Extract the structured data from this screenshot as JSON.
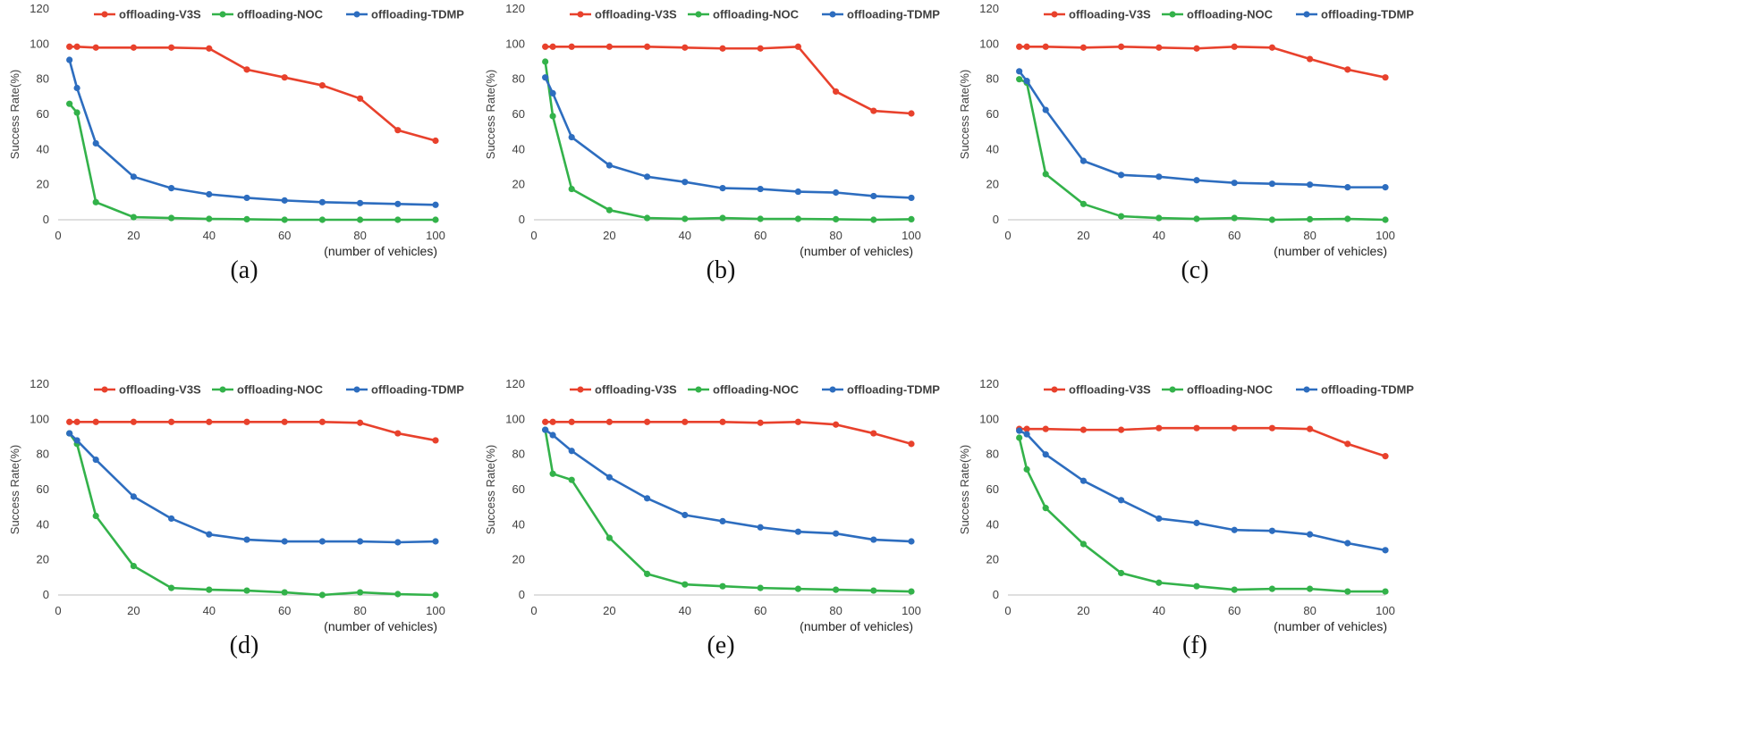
{
  "chart_data": [
    {
      "panel_label": "(a)",
      "type": "line",
      "xlabel": "(number of vehicles)",
      "ylabel": "Success Rate(%)",
      "xlim": [
        0,
        100
      ],
      "ylim": [
        0,
        120
      ],
      "x_ticks": [
        "0",
        "20",
        "40",
        "60",
        "80",
        "100"
      ],
      "y_ticks": [
        "0",
        "20",
        "40",
        "60",
        "80",
        "100",
        "120"
      ],
      "x": [
        3,
        5,
        10,
        20,
        30,
        40,
        50,
        60,
        70,
        80,
        90,
        100
      ],
      "series": [
        {
          "name": "offloading-V3S",
          "color": "#e8412c",
          "values": [
            98.5,
            98.5,
            98,
            98,
            98,
            97.5,
            85.5,
            81,
            76.5,
            69,
            51,
            45
          ]
        },
        {
          "name": "offloading-NOC",
          "color": "#33b24a",
          "values": [
            66,
            61,
            10,
            1.5,
            1,
            0.5,
            0.3,
            0,
            0,
            0,
            0,
            0
          ]
        },
        {
          "name": "offloading-TDMP",
          "color": "#2d6dbf",
          "values": [
            91,
            75,
            43.5,
            24.5,
            18,
            14.5,
            12.5,
            11,
            10,
            9.5,
            9,
            8.5
          ]
        }
      ]
    },
    {
      "panel_label": "(b)",
      "type": "line",
      "xlabel": "(number of vehicles)",
      "ylabel": "Success Rate(%)",
      "xlim": [
        0,
        100
      ],
      "ylim": [
        0,
        120
      ],
      "x_ticks": [
        "0",
        "20",
        "40",
        "60",
        "80",
        "100"
      ],
      "y_ticks": [
        "0",
        "20",
        "40",
        "60",
        "80",
        "100",
        "120"
      ],
      "x": [
        3,
        5,
        10,
        20,
        30,
        40,
        50,
        60,
        70,
        80,
        90,
        100
      ],
      "series": [
        {
          "name": "offloading-V3S",
          "color": "#e8412c",
          "values": [
            98.5,
            98.5,
            98.5,
            98.5,
            98.5,
            98,
            97.5,
            97.5,
            98.5,
            73,
            62,
            60.5
          ]
        },
        {
          "name": "offloading-NOC",
          "color": "#33b24a",
          "values": [
            90,
            59,
            17.5,
            5.5,
            1,
            0.5,
            1,
            0.5,
            0.5,
            0.3,
            0,
            0.3
          ]
        },
        {
          "name": "offloading-TDMP",
          "color": "#2d6dbf",
          "values": [
            81,
            72,
            47,
            31,
            24.5,
            21.5,
            18,
            17.5,
            16,
            15.5,
            13.5,
            12.5
          ]
        }
      ]
    },
    {
      "panel_label": "(c)",
      "type": "line",
      "xlabel": "(number of vehicles)",
      "ylabel": "Success Rate(%)",
      "xlim": [
        0,
        100
      ],
      "ylim": [
        0,
        120
      ],
      "x_ticks": [
        "0",
        "20",
        "40",
        "60",
        "80",
        "100"
      ],
      "y_ticks": [
        "0",
        "20",
        "40",
        "60",
        "80",
        "100",
        "120"
      ],
      "x": [
        3,
        5,
        10,
        20,
        30,
        40,
        50,
        60,
        70,
        80,
        90,
        100
      ],
      "series": [
        {
          "name": "offloading-V3S",
          "color": "#e8412c",
          "values": [
            98.5,
            98.5,
            98.5,
            98,
            98.5,
            98,
            97.5,
            98.5,
            98,
            91.5,
            85.5,
            81
          ]
        },
        {
          "name": "offloading-NOC",
          "color": "#33b24a",
          "values": [
            80,
            78,
            26,
            9,
            2,
            1,
            0.5,
            1,
            0,
            0.3,
            0.5,
            0
          ]
        },
        {
          "name": "offloading-TDMP",
          "color": "#2d6dbf",
          "values": [
            84.5,
            79,
            62.5,
            33.5,
            25.5,
            24.5,
            22.5,
            21,
            20.5,
            20,
            18.5,
            18.5
          ]
        }
      ]
    },
    {
      "panel_label": "(d)",
      "type": "line",
      "xlabel": "(number of vehicles)",
      "ylabel": "Success Rate(%)",
      "xlim": [
        0,
        100
      ],
      "ylim": [
        0,
        120
      ],
      "x_ticks": [
        "0",
        "20",
        "40",
        "60",
        "80",
        "100"
      ],
      "y_ticks": [
        "0",
        "20",
        "40",
        "60",
        "80",
        "100",
        "120"
      ],
      "x": [
        3,
        5,
        10,
        20,
        30,
        40,
        50,
        60,
        70,
        80,
        90,
        100
      ],
      "series": [
        {
          "name": "offloading-V3S",
          "color": "#e8412c",
          "values": [
            98.5,
            98.5,
            98.5,
            98.5,
            98.5,
            98.5,
            98.5,
            98.5,
            98.5,
            98,
            92,
            88
          ]
        },
        {
          "name": "offloading-NOC",
          "color": "#33b24a",
          "values": [
            92,
            86,
            45,
            16.5,
            4,
            3,
            2.5,
            1.5,
            0,
            1.5,
            0.5,
            0
          ]
        },
        {
          "name": "offloading-TDMP",
          "color": "#2d6dbf",
          "values": [
            92,
            88,
            77,
            56,
            43.5,
            34.5,
            31.5,
            30.5,
            30.5,
            30.5,
            30,
            30.5
          ]
        }
      ]
    },
    {
      "panel_label": "(e)",
      "type": "line",
      "xlabel": "(number of vehicles)",
      "ylabel": "Success Rate(%)",
      "xlim": [
        0,
        100
      ],
      "ylim": [
        0,
        120
      ],
      "x_ticks": [
        "0",
        "20",
        "40",
        "60",
        "80",
        "100"
      ],
      "y_ticks": [
        "0",
        "20",
        "40",
        "60",
        "80",
        "100",
        "120"
      ],
      "x": [
        3,
        5,
        10,
        20,
        30,
        40,
        50,
        60,
        70,
        80,
        90,
        100
      ],
      "series": [
        {
          "name": "offloading-V3S",
          "color": "#e8412c",
          "values": [
            98.5,
            98.5,
            98.5,
            98.5,
            98.5,
            98.5,
            98.5,
            98,
            98.5,
            97,
            92,
            86
          ]
        },
        {
          "name": "offloading-NOC",
          "color": "#33b24a",
          "values": [
            94,
            69,
            65.5,
            32.5,
            12,
            6,
            5,
            4,
            3.5,
            3,
            2.5,
            2
          ]
        },
        {
          "name": "offloading-TDMP",
          "color": "#2d6dbf",
          "values": [
            94,
            91,
            82,
            67,
            55,
            45.5,
            42,
            38.5,
            36,
            35,
            31.5,
            30.5
          ]
        }
      ]
    },
    {
      "panel_label": "(f)",
      "type": "line",
      "xlabel": "(number of vehicles)",
      "ylabel": "Success Rate(%)",
      "xlim": [
        0,
        100
      ],
      "ylim": [
        0,
        120
      ],
      "x_ticks": [
        "0",
        "20",
        "40",
        "60",
        "80",
        "100"
      ],
      "y_ticks": [
        "0",
        "20",
        "40",
        "60",
        "80",
        "100",
        "120"
      ],
      "x": [
        3,
        5,
        10,
        20,
        30,
        40,
        50,
        60,
        70,
        80,
        90,
        100
      ],
      "series": [
        {
          "name": "offloading-V3S",
          "color": "#e8412c",
          "values": [
            94.5,
            94.5,
            94.5,
            94,
            94,
            95,
            95,
            95,
            95,
            94.5,
            86,
            79
          ]
        },
        {
          "name": "offloading-NOC",
          "color": "#33b24a",
          "values": [
            89.5,
            71.5,
            49.5,
            29,
            12.5,
            7,
            5,
            3,
            3.5,
            3.5,
            2,
            2
          ]
        },
        {
          "name": "offloading-TDMP",
          "color": "#2d6dbf",
          "values": [
            93.5,
            91.5,
            80,
            65,
            54,
            43.5,
            41,
            37,
            36.5,
            34.5,
            29.5,
            25.5
          ]
        }
      ]
    }
  ]
}
